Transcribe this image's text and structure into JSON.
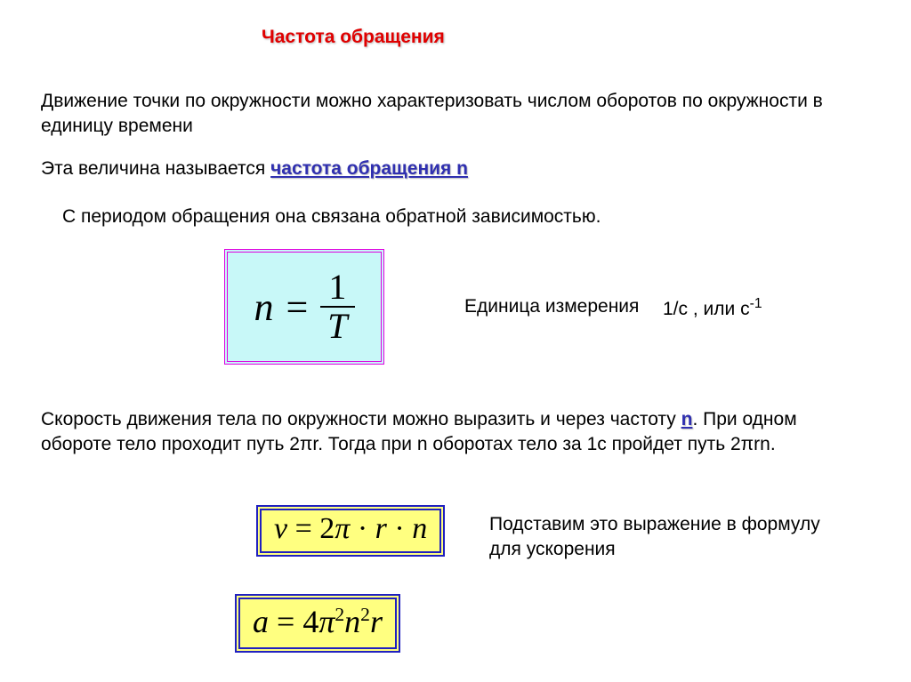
{
  "title": "Частота обращения",
  "para1": "Движение точки по окружности можно характеризовать числом оборотов по окружности в единицу времени",
  "para2_prefix": "Эта величина называется ",
  "para2_term": "частота обращения n",
  "para3": "С периодом обращения она связана обратной зависимостью.",
  "formula1": {
    "lhs": "n",
    "eq": "=",
    "num": "1",
    "den": "T",
    "border_color": "#e000e0",
    "bg_color": "#c8f8f8"
  },
  "unit_label": "Единица измерения",
  "unit_value_html": "1/с , или с",
  "unit_value_sup": "-1",
  "para4_part1": "Скорость движения тела по окружности можно выразить и через частоту ",
  "para4_n": "n",
  "para4_part2": ". При одном обороте тело проходит путь 2πr. Тогда при n оборотах тело за 1с пройдет путь 2πrn.",
  "formula2": {
    "text": "v = 2π · r · n",
    "border_color": "#2020c0",
    "bg_color": "#ffff80"
  },
  "subst": "Подставим это выражение в формулу для ускорения",
  "formula3": {
    "lhs": "a",
    "eq": "=",
    "coeff": "4",
    "pi": "π",
    "exp1": "2",
    "n": "n",
    "exp2": "2",
    "r": "r",
    "border_color": "#2020c0",
    "bg_color": "#ffff80"
  },
  "colors": {
    "title_color": "#e00000",
    "term_color": "#3030b0",
    "text_color": "#000000",
    "background": "#ffffff"
  },
  "typography": {
    "body_font": "Arial",
    "body_size_pt": 16,
    "formula_font": "Times New Roman",
    "formula_size_pt": 30
  }
}
